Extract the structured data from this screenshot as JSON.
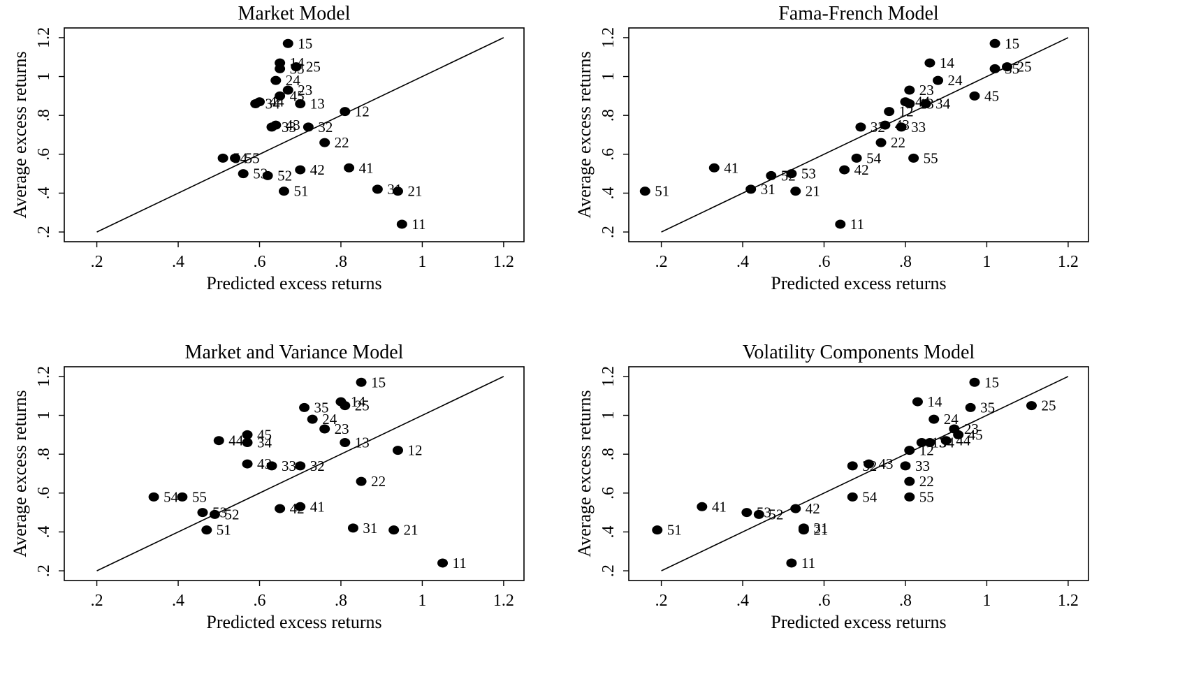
{
  "chart_data": [
    {
      "type": "scatter",
      "title": "Market Model",
      "xlabel": "Predicted excess returns",
      "ylabel": "Average excess returns",
      "xlim": [
        0.12,
        1.25
      ],
      "ylim": [
        0.15,
        1.25
      ],
      "xticks": [
        0.2,
        0.4,
        0.6,
        0.8,
        1,
        1.2
      ],
      "xtick_labels": [
        ".2",
        ".4",
        ".6",
        ".8",
        "1",
        "1.2"
      ],
      "yticks": [
        0.2,
        0.4,
        0.6,
        0.8,
        1,
        1.2
      ],
      "ytick_labels": [
        ".2",
        ".4",
        ".6",
        ".8",
        "1",
        "1.2"
      ],
      "reference_line": [
        [
          0.2,
          0.2
        ],
        [
          1.2,
          1.2
        ]
      ],
      "points": [
        {
          "label": "15",
          "x": 0.67,
          "y": 1.17
        },
        {
          "label": "14",
          "x": 0.65,
          "y": 1.07
        },
        {
          "label": "25",
          "x": 0.69,
          "y": 1.05
        },
        {
          "label": "35",
          "x": 0.65,
          "y": 1.04
        },
        {
          "label": "24",
          "x": 0.64,
          "y": 0.98
        },
        {
          "label": "23",
          "x": 0.67,
          "y": 0.93
        },
        {
          "label": "45",
          "x": 0.65,
          "y": 0.9
        },
        {
          "label": "13",
          "x": 0.7,
          "y": 0.86
        },
        {
          "label": "34",
          "x": 0.59,
          "y": 0.86
        },
        {
          "label": "44",
          "x": 0.6,
          "y": 0.87
        },
        {
          "label": "12",
          "x": 0.81,
          "y": 0.82
        },
        {
          "label": "43",
          "x": 0.64,
          "y": 0.75
        },
        {
          "label": "33",
          "x": 0.63,
          "y": 0.74
        },
        {
          "label": "32",
          "x": 0.72,
          "y": 0.74
        },
        {
          "label": "22",
          "x": 0.76,
          "y": 0.66
        },
        {
          "label": "54",
          "x": 0.51,
          "y": 0.58
        },
        {
          "label": "55",
          "x": 0.54,
          "y": 0.58
        },
        {
          "label": "53",
          "x": 0.56,
          "y": 0.5
        },
        {
          "label": "52",
          "x": 0.62,
          "y": 0.49
        },
        {
          "label": "42",
          "x": 0.7,
          "y": 0.52
        },
        {
          "label": "41",
          "x": 0.82,
          "y": 0.53
        },
        {
          "label": "51",
          "x": 0.66,
          "y": 0.41
        },
        {
          "label": "31",
          "x": 0.89,
          "y": 0.42
        },
        {
          "label": "21",
          "x": 0.94,
          "y": 0.41
        },
        {
          "label": "11",
          "x": 0.95,
          "y": 0.24
        }
      ]
    },
    {
      "type": "scatter",
      "title": "Fama-French Model",
      "xlabel": "Predicted excess returns",
      "ylabel": "Average excess returns",
      "xlim": [
        0.12,
        1.25
      ],
      "ylim": [
        0.15,
        1.25
      ],
      "xticks": [
        0.2,
        0.4,
        0.6,
        0.8,
        1,
        1.2
      ],
      "xtick_labels": [
        ".2",
        ".4",
        ".6",
        ".8",
        "1",
        "1.2"
      ],
      "yticks": [
        0.2,
        0.4,
        0.6,
        0.8,
        1,
        1.2
      ],
      "ytick_labels": [
        ".2",
        ".4",
        ".6",
        ".8",
        "1",
        "1.2"
      ],
      "reference_line": [
        [
          0.2,
          0.2
        ],
        [
          1.2,
          1.2
        ]
      ],
      "points": [
        {
          "label": "15",
          "x": 1.02,
          "y": 1.17
        },
        {
          "label": "14",
          "x": 0.86,
          "y": 1.07
        },
        {
          "label": "25",
          "x": 1.05,
          "y": 1.05
        },
        {
          "label": "35",
          "x": 1.02,
          "y": 1.04
        },
        {
          "label": "24",
          "x": 0.88,
          "y": 0.98
        },
        {
          "label": "45",
          "x": 0.97,
          "y": 0.9
        },
        {
          "label": "23",
          "x": 0.81,
          "y": 0.93
        },
        {
          "label": "44",
          "x": 0.8,
          "y": 0.87
        },
        {
          "label": "13",
          "x": 0.81,
          "y": 0.86
        },
        {
          "label": "34",
          "x": 0.85,
          "y": 0.86
        },
        {
          "label": "12",
          "x": 0.76,
          "y": 0.82
        },
        {
          "label": "43",
          "x": 0.75,
          "y": 0.75
        },
        {
          "label": "32",
          "x": 0.69,
          "y": 0.74
        },
        {
          "label": "33",
          "x": 0.79,
          "y": 0.74
        },
        {
          "label": "22",
          "x": 0.74,
          "y": 0.66
        },
        {
          "label": "54",
          "x": 0.68,
          "y": 0.58
        },
        {
          "label": "55",
          "x": 0.82,
          "y": 0.58
        },
        {
          "label": "42",
          "x": 0.65,
          "y": 0.52
        },
        {
          "label": "41",
          "x": 0.33,
          "y": 0.53
        },
        {
          "label": "52",
          "x": 0.47,
          "y": 0.49
        },
        {
          "label": "53",
          "x": 0.52,
          "y": 0.5
        },
        {
          "label": "31",
          "x": 0.42,
          "y": 0.42
        },
        {
          "label": "21",
          "x": 0.53,
          "y": 0.41
        },
        {
          "label": "51",
          "x": 0.16,
          "y": 0.41
        },
        {
          "label": "11",
          "x": 0.64,
          "y": 0.24
        }
      ]
    },
    {
      "type": "scatter",
      "title": "Market and Variance Model",
      "xlabel": "Predicted excess returns",
      "ylabel": "Average excess returns",
      "xlim": [
        0.12,
        1.25
      ],
      "ylim": [
        0.15,
        1.25
      ],
      "xticks": [
        0.2,
        0.4,
        0.6,
        0.8,
        1,
        1.2
      ],
      "xtick_labels": [
        ".2",
        ".4",
        ".6",
        ".8",
        "1",
        "1.2"
      ],
      "yticks": [
        0.2,
        0.4,
        0.6,
        0.8,
        1,
        1.2
      ],
      "ytick_labels": [
        ".2",
        ".4",
        ".6",
        ".8",
        "1",
        "1.2"
      ],
      "reference_line": [
        [
          0.2,
          0.2
        ],
        [
          1.2,
          1.2
        ]
      ],
      "points": [
        {
          "label": "15",
          "x": 0.85,
          "y": 1.17
        },
        {
          "label": "14",
          "x": 0.8,
          "y": 1.07
        },
        {
          "label": "25",
          "x": 0.81,
          "y": 1.05
        },
        {
          "label": "35",
          "x": 0.71,
          "y": 1.04
        },
        {
          "label": "24",
          "x": 0.73,
          "y": 0.98
        },
        {
          "label": "23",
          "x": 0.76,
          "y": 0.93
        },
        {
          "label": "45",
          "x": 0.57,
          "y": 0.9
        },
        {
          "label": "13",
          "x": 0.81,
          "y": 0.86
        },
        {
          "label": "44",
          "x": 0.5,
          "y": 0.87
        },
        {
          "label": "34",
          "x": 0.57,
          "y": 0.86
        },
        {
          "label": "12",
          "x": 0.94,
          "y": 0.82
        },
        {
          "label": "43",
          "x": 0.57,
          "y": 0.75
        },
        {
          "label": "33",
          "x": 0.63,
          "y": 0.74
        },
        {
          "label": "32",
          "x": 0.7,
          "y": 0.74
        },
        {
          "label": "22",
          "x": 0.85,
          "y": 0.66
        },
        {
          "label": "54",
          "x": 0.34,
          "y": 0.58
        },
        {
          "label": "55",
          "x": 0.41,
          "y": 0.58
        },
        {
          "label": "53",
          "x": 0.46,
          "y": 0.5
        },
        {
          "label": "52",
          "x": 0.49,
          "y": 0.49
        },
        {
          "label": "42",
          "x": 0.65,
          "y": 0.52
        },
        {
          "label": "41",
          "x": 0.7,
          "y": 0.53
        },
        {
          "label": "51",
          "x": 0.47,
          "y": 0.41
        },
        {
          "label": "31",
          "x": 0.83,
          "y": 0.42
        },
        {
          "label": "21",
          "x": 0.93,
          "y": 0.41
        },
        {
          "label": "11",
          "x": 1.05,
          "y": 0.24
        }
      ]
    },
    {
      "type": "scatter",
      "title": "Volatility Components Model",
      "xlabel": "Predicted excess returns",
      "ylabel": "Average excess returns",
      "xlim": [
        0.12,
        1.25
      ],
      "ylim": [
        0.15,
        1.25
      ],
      "xticks": [
        0.2,
        0.4,
        0.6,
        0.8,
        1,
        1.2
      ],
      "xtick_labels": [
        ".2",
        ".4",
        ".6",
        ".8",
        "1",
        "1.2"
      ],
      "yticks": [
        0.2,
        0.4,
        0.6,
        0.8,
        1,
        1.2
      ],
      "ytick_labels": [
        ".2",
        ".4",
        ".6",
        ".8",
        "1",
        "1.2"
      ],
      "reference_line": [
        [
          0.2,
          0.2
        ],
        [
          1.2,
          1.2
        ]
      ],
      "points": [
        {
          "label": "15",
          "x": 0.97,
          "y": 1.17
        },
        {
          "label": "14",
          "x": 0.83,
          "y": 1.07
        },
        {
          "label": "35",
          "x": 0.96,
          "y": 1.04
        },
        {
          "label": "25",
          "x": 1.11,
          "y": 1.05
        },
        {
          "label": "24",
          "x": 0.87,
          "y": 0.98
        },
        {
          "label": "23",
          "x": 0.92,
          "y": 0.93
        },
        {
          "label": "45",
          "x": 0.93,
          "y": 0.9
        },
        {
          "label": "44",
          "x": 0.9,
          "y": 0.87
        },
        {
          "label": "13",
          "x": 0.84,
          "y": 0.86
        },
        {
          "label": "34",
          "x": 0.86,
          "y": 0.86
        },
        {
          "label": "12",
          "x": 0.81,
          "y": 0.82
        },
        {
          "label": "32",
          "x": 0.67,
          "y": 0.74
        },
        {
          "label": "43",
          "x": 0.71,
          "y": 0.75
        },
        {
          "label": "33",
          "x": 0.8,
          "y": 0.74
        },
        {
          "label": "22",
          "x": 0.81,
          "y": 0.66
        },
        {
          "label": "54",
          "x": 0.67,
          "y": 0.58
        },
        {
          "label": "55",
          "x": 0.81,
          "y": 0.58
        },
        {
          "label": "41",
          "x": 0.3,
          "y": 0.53
        },
        {
          "label": "42",
          "x": 0.53,
          "y": 0.52
        },
        {
          "label": "53",
          "x": 0.41,
          "y": 0.5
        },
        {
          "label": "52",
          "x": 0.44,
          "y": 0.49
        },
        {
          "label": "31",
          "x": 0.55,
          "y": 0.42
        },
        {
          "label": "21",
          "x": 0.55,
          "y": 0.41
        },
        {
          "label": "51",
          "x": 0.19,
          "y": 0.41
        },
        {
          "label": "11",
          "x": 0.52,
          "y": 0.24
        }
      ]
    }
  ]
}
